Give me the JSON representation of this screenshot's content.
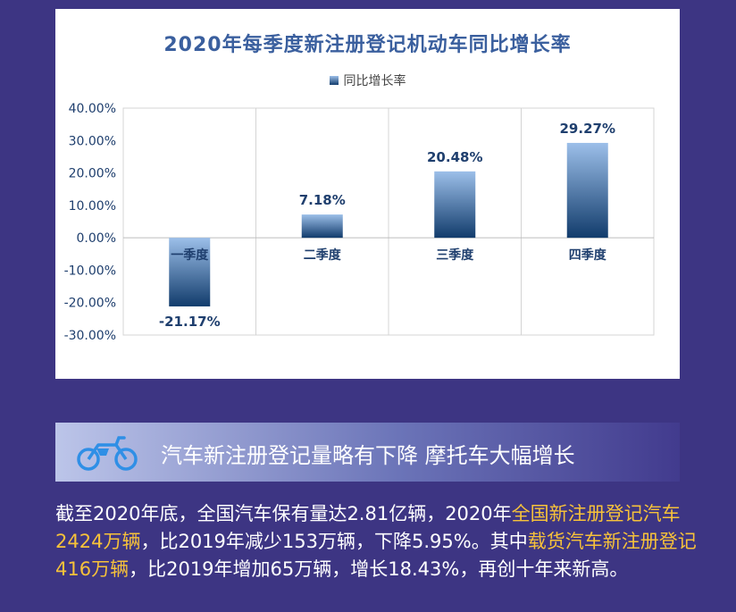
{
  "chart_data": {
    "type": "bar",
    "title": "2020年每季度新注册登记机动车同比增长率",
    "legend": [
      "同比增长率"
    ],
    "legend_position": "top",
    "categories": [
      "一季度",
      "二季度",
      "三季度",
      "四季度"
    ],
    "series": [
      {
        "name": "同比增长率",
        "values": [
          -21.17,
          7.18,
          20.48,
          29.27
        ]
      }
    ],
    "data_labels": [
      "-21.17%",
      "7.18%",
      "20.48%",
      "29.27%"
    ],
    "yticks": [
      "40.00%",
      "30.00%",
      "20.00%",
      "10.00%",
      "0.00%",
      "-10.00%",
      "-20.00%",
      "-30.00%"
    ],
    "ylim": [
      -30,
      40
    ],
    "grid": "vertical",
    "colors": {
      "bar_top": "#9cbfe9",
      "bar_bottom": "#123c6c",
      "label": "#1f3f6e"
    }
  },
  "banner": {
    "icon": "motorcycle-icon",
    "text": "汽车新注册登记量略有下降  摩托车大幅增长"
  },
  "body": {
    "p1": "截至2020年底，全国汽车保有量达2.81亿辆，2020年",
    "h1": "全国新注册登记汽车2424万辆",
    "p2": "，比2019年减少153万辆，下降5.95%。其中",
    "h2": "载货汽车新注册登记416万辆",
    "p3": "，比2019年增加65万辆，增长18.43%，再创十年来新高。"
  }
}
